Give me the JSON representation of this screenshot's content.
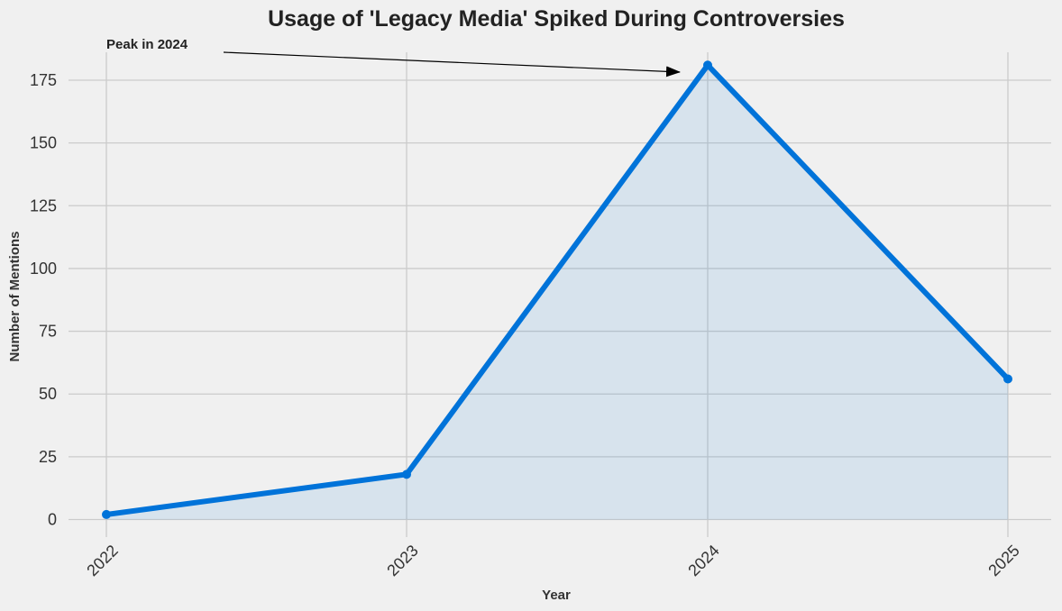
{
  "chart_data": {
    "type": "area",
    "title": "Usage of 'Legacy Media' Spiked During Controversies",
    "xlabel": "Year",
    "ylabel": "Number of Mentions",
    "x": [
      "2022",
      "2023",
      "2024",
      "2025"
    ],
    "values": [
      2,
      18,
      181,
      56
    ],
    "ylim": [
      -7,
      189
    ],
    "yticks": [
      0,
      25,
      50,
      75,
      100,
      125,
      150,
      175
    ],
    "grid": true,
    "annotation": {
      "text": "Peak in 2024",
      "target_x": "2024",
      "target_y": 181
    },
    "colors": {
      "line": "#0073d9",
      "fill": "#d6e3ee",
      "grid": "#cbcbcb",
      "background": "#f0f0f0",
      "annotation_arrow": "#000000"
    }
  }
}
